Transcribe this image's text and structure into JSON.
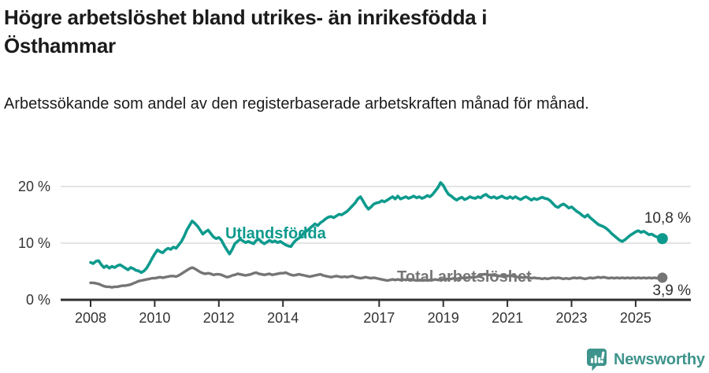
{
  "chart_data": {
    "type": "line",
    "title": "Högre arbetslöshet bland utrikes- än inrikesfödda i Östhammar",
    "subtitle": "Arbetssökande som andel av den registerbaserade arbetskraften månad för månad.",
    "unit": "%",
    "grid": true,
    "legend_position": "inline-labels-on-lines",
    "x_axis": {
      "ticks": [
        {
          "value": 2008,
          "label": "2008"
        },
        {
          "value": 2010,
          "label": "2010"
        },
        {
          "value": 2012,
          "label": "2012"
        },
        {
          "value": 2014,
          "label": "2014"
        },
        {
          "value": 2017,
          "label": "2017"
        },
        {
          "value": 2019,
          "label": "2019"
        },
        {
          "value": 2021,
          "label": "2021"
        },
        {
          "value": 2023,
          "label": "2023"
        },
        {
          "value": 2025,
          "label": "2025"
        }
      ]
    },
    "y_axis": {
      "range": [
        0,
        21.7
      ],
      "ticks": [
        {
          "value": 0,
          "label": "0 %"
        },
        {
          "value": 10,
          "label": "10 %"
        },
        {
          "value": 20,
          "label": "20 %"
        }
      ]
    },
    "series": [
      {
        "name": "Utlandsfödda",
        "color": "#0d9a8d",
        "end_label": "10,8 %",
        "end_value": 10.8,
        "start_year": 2008,
        "points_per_year": 12,
        "values": [
          6.6,
          6.4,
          6.8,
          6.9,
          6.2,
          5.7,
          6.0,
          5.6,
          5.9,
          5.7,
          6.0,
          6.2,
          5.9,
          5.6,
          5.3,
          5.7,
          5.5,
          5.2,
          5.1,
          4.8,
          5.1,
          5.6,
          6.4,
          7.3,
          8.1,
          8.8,
          8.5,
          8.3,
          8.8,
          9.1,
          8.9,
          9.3,
          9.1,
          9.7,
          10.3,
          11.2,
          12.3,
          13.1,
          13.9,
          13.5,
          13.0,
          12.3,
          11.6,
          12.0,
          12.3,
          11.7,
          11.1,
          10.8,
          11.0,
          10.5,
          9.6,
          8.8,
          8.1,
          8.9,
          9.9,
          10.3,
          10.7,
          10.4,
          10.1,
          10.3,
          10.1,
          9.9,
          10.5,
          10.7,
          10.2,
          9.9,
          10.2,
          10.5,
          10.2,
          10.4,
          10.1,
          10.3,
          10.0,
          9.7,
          9.5,
          9.4,
          10.1,
          10.6,
          10.9,
          11.3,
          11.9,
          12.2,
          12.6,
          13.0,
          13.4,
          13.1,
          13.6,
          13.9,
          14.3,
          14.6,
          14.7,
          14.5,
          14.8,
          15.1,
          15.0,
          15.3,
          15.6,
          16.1,
          16.6,
          17.1,
          17.8,
          18.2,
          17.4,
          16.6,
          16.0,
          16.4,
          16.9,
          17.1,
          17.2,
          17.5,
          17.3,
          17.6,
          17.9,
          18.2,
          17.8,
          18.3,
          17.8,
          18.0,
          18.2,
          17.9,
          18.1,
          18.3,
          18.0,
          18.2,
          17.9,
          18.1,
          18.4,
          18.2,
          18.6,
          19.2,
          19.8,
          20.7,
          20.2,
          19.3,
          18.6,
          18.3,
          17.9,
          17.6,
          17.9,
          18.1,
          17.7,
          17.9,
          18.2,
          18.0,
          17.9,
          18.2,
          18.0,
          18.4,
          18.6,
          18.2,
          18.0,
          18.2,
          17.9,
          18.1,
          18.3,
          18.0,
          17.9,
          18.2,
          17.9,
          18.2,
          17.9,
          17.7,
          18.0,
          18.2,
          17.9,
          17.6,
          17.9,
          17.7,
          17.9,
          18.1,
          17.9,
          17.8,
          17.5,
          17.0,
          16.5,
          16.3,
          16.7,
          16.9,
          16.6,
          16.2,
          16.4,
          16.0,
          15.6,
          15.3,
          14.9,
          14.6,
          15.0,
          14.5,
          14.1,
          13.7,
          13.3,
          13.1,
          12.9,
          12.6,
          12.2,
          11.7,
          11.3,
          10.9,
          10.5,
          10.3,
          10.6,
          11.0,
          11.4,
          11.7,
          12.0,
          12.2,
          11.9,
          12.1,
          11.8,
          11.5,
          11.6,
          11.3,
          11.1,
          10.9,
          10.8
        ]
      },
      {
        "name": "Total arbetslöshet",
        "color": "#757575",
        "end_label": "3,9 %",
        "end_value": 3.9,
        "start_year": 2008,
        "points_per_year": 12,
        "values": [
          3.0,
          3.0,
          2.9,
          2.8,
          2.6,
          2.4,
          2.3,
          2.3,
          2.2,
          2.3,
          2.3,
          2.4,
          2.5,
          2.5,
          2.6,
          2.7,
          2.9,
          3.1,
          3.3,
          3.4,
          3.5,
          3.6,
          3.7,
          3.8,
          3.8,
          3.9,
          4.0,
          3.9,
          4.0,
          4.1,
          4.2,
          4.2,
          4.1,
          4.3,
          4.6,
          4.9,
          5.2,
          5.5,
          5.7,
          5.5,
          5.2,
          4.9,
          4.7,
          4.6,
          4.7,
          4.6,
          4.4,
          4.5,
          4.5,
          4.4,
          4.2,
          4.0,
          4.1,
          4.3,
          4.4,
          4.6,
          4.5,
          4.4,
          4.3,
          4.4,
          4.5,
          4.7,
          4.8,
          4.6,
          4.5,
          4.4,
          4.5,
          4.6,
          4.4,
          4.5,
          4.6,
          4.7,
          4.7,
          4.8,
          4.6,
          4.4,
          4.3,
          4.4,
          4.5,
          4.4,
          4.3,
          4.2,
          4.1,
          4.2,
          4.3,
          4.4,
          4.5,
          4.3,
          4.2,
          4.1,
          4.0,
          4.1,
          4.2,
          4.1,
          4.0,
          4.1,
          4.0,
          4.1,
          4.2,
          4.0,
          3.9,
          3.8,
          3.9,
          4.0,
          3.9,
          3.8,
          3.9,
          3.8,
          3.7,
          3.6,
          3.5,
          3.4,
          3.5,
          3.6,
          3.5,
          3.6,
          3.5,
          3.6,
          3.5,
          3.6,
          3.6,
          3.5,
          3.4,
          3.5,
          3.4,
          3.5,
          3.4,
          3.5,
          3.5,
          3.6,
          3.5,
          3.6,
          3.6,
          3.7,
          3.6,
          3.7,
          3.8,
          3.7,
          3.8,
          3.9,
          3.8,
          3.9,
          3.9,
          4.0,
          4.0,
          4.1,
          4.3,
          4.5,
          4.5,
          4.4,
          4.4,
          4.3,
          4.3,
          4.2,
          4.2,
          4.3,
          4.2,
          4.3,
          4.2,
          4.1,
          4.0,
          4.0,
          3.9,
          4.0,
          3.9,
          3.8,
          3.9,
          3.8,
          3.8,
          3.7,
          3.8,
          3.7,
          3.8,
          3.9,
          3.8,
          3.9,
          3.8,
          3.7,
          3.8,
          3.7,
          3.8,
          3.9,
          3.8,
          3.9,
          3.8,
          3.7,
          3.8,
          3.9,
          3.8,
          3.9,
          4.0,
          3.9,
          4.0,
          3.9,
          3.8,
          3.9,
          3.8,
          3.9,
          3.8,
          3.9,
          3.8,
          3.9,
          3.8,
          3.9,
          3.8,
          3.9,
          3.8,
          3.9,
          3.8,
          3.9,
          3.8,
          3.9,
          3.8,
          3.9,
          3.9
        ]
      }
    ]
  },
  "footer": {
    "brand": "Newsworthy",
    "logo_icon": "newsworthy-speech-bubble-bar-chart-icon"
  },
  "colors": {
    "series_utlandsfodda": "#0d9a8d",
    "series_total": "#757575",
    "title_text": "#1b1b1b",
    "axis_text": "#333333",
    "gridline": "#dcdcdc",
    "axis_line": "#2f2f2f",
    "value_label_text": "#2d2d2d",
    "brand_teal": "#3e948c"
  }
}
